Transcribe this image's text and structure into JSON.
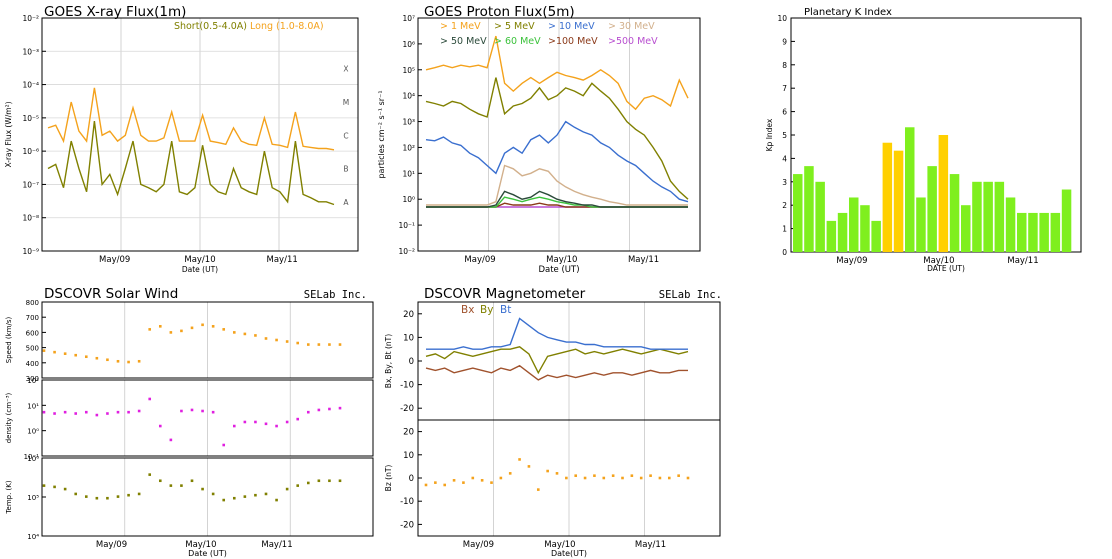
{
  "chart_data": [
    {
      "type": "line",
      "title": "GOES X-ray Flux(1m)",
      "xlabel": "Date (UT)",
      "ylabel": "X-ray Flux (W/m²)",
      "y_scale": "log",
      "ylim": [
        1e-09,
        0.01
      ],
      "y_ticks": [
        "10⁻⁹",
        "10⁻⁸",
        "10⁻⁷",
        "10⁻⁶",
        "10⁻⁵",
        "10⁻⁴",
        "10⁻³",
        "10⁻²"
      ],
      "x_ticks": [
        "May/09",
        "May/10",
        "May/11"
      ],
      "flare_classes": [
        "A",
        "B",
        "C",
        "M",
        "X"
      ],
      "grid": true,
      "legend": "top-right",
      "series": [
        {
          "name": "Short(0.5-4.0A)",
          "color": "#808000",
          "values": [
            3e-07,
            4e-07,
            8e-08,
            2e-06,
            3e-07,
            6e-08,
            8e-06,
            1e-07,
            2e-07,
            5e-08,
            3e-07,
            2e-06,
            1e-07,
            8e-08,
            6e-08,
            1e-07,
            2e-06,
            6e-08,
            5e-08,
            8e-08,
            1.5e-06,
            1e-07,
            6e-08,
            5e-08,
            3e-07,
            8e-08,
            6e-08,
            5e-08,
            1e-06,
            8e-08,
            6e-08,
            3e-08,
            2e-06,
            5e-08,
            4e-08,
            3e-08,
            3e-08,
            2.5e-08
          ]
        },
        {
          "name": "Long (1.0-8.0A)",
          "color": "#f4a21c",
          "values": [
            5e-06,
            6e-06,
            2e-06,
            3e-05,
            4e-06,
            2e-06,
            8e-05,
            3e-06,
            4e-06,
            2e-06,
            3e-06,
            2e-05,
            3e-06,
            2e-06,
            2e-06,
            2.5e-06,
            1.5e-05,
            2e-06,
            2e-06,
            2e-06,
            1.2e-05,
            2e-06,
            1.8e-06,
            1.6e-06,
            5e-06,
            2e-06,
            1.6e-06,
            1.5e-06,
            1e-05,
            1.6e-06,
            1.5e-06,
            1.3e-06,
            1.5e-05,
            1.4e-06,
            1.3e-06,
            1.2e-06,
            1.2e-06,
            1.1e-06
          ]
        }
      ]
    },
    {
      "type": "line",
      "title": "GOES Proton Flux(5m)",
      "xlabel": "Date (UT)",
      "ylabel": "particles cm⁻² s⁻¹ sr⁻¹",
      "y_scale": "log",
      "ylim": [
        0.01,
        10000000.0
      ],
      "y_ticks": [
        "10⁻²",
        "10⁻¹",
        "10⁰",
        "10¹",
        "10²",
        "10³",
        "10⁴",
        "10⁵",
        "10⁶",
        "10⁷"
      ],
      "x_ticks": [
        "May/09",
        "May/10",
        "May/11"
      ],
      "grid": true,
      "legend": "top",
      "series": [
        {
          "name": "> 1 MeV",
          "color": "#f4a21c",
          "values": [
            100000.0,
            120000.0,
            150000.0,
            120000.0,
            150000.0,
            130000.0,
            150000.0,
            120000.0,
            2000000.0,
            30000.0,
            15000.0,
            30000.0,
            50000.0,
            30000.0,
            50000.0,
            80000.0,
            60000.0,
            50000.0,
            40000.0,
            60000.0,
            100000.0,
            60000.0,
            30000.0,
            6000.0,
            3000.0,
            8000.0,
            10000.0,
            7000.0,
            4000.0,
            40000.0,
            8000.0
          ]
        },
        {
          "name": "> 5 MeV",
          "color": "#808000",
          "values": [
            6000.0,
            5000.0,
            4000.0,
            6000.0,
            5000.0,
            3000.0,
            2000.0,
            1500.0,
            50000.0,
            2000.0,
            4000.0,
            5000.0,
            8000.0,
            20000.0,
            7000.0,
            10000.0,
            20000.0,
            15000.0,
            10000.0,
            30000.0,
            15000.0,
            8000.0,
            3000.0,
            1000.0,
            500,
            300,
            100,
            30,
            5,
            2,
            1
          ]
        },
        {
          "name": "> 10 MeV",
          "color": "#3a6fcf",
          "values": [
            200,
            180,
            250,
            150,
            120,
            60,
            40,
            20,
            10,
            60,
            100,
            60,
            200,
            300,
            150,
            300,
            1000,
            600,
            400,
            300,
            150,
            100,
            50,
            30,
            20,
            10,
            5,
            3,
            2,
            1,
            0.8
          ]
        },
        {
          "name": "> 30 MeV",
          "color": "#d2b08c",
          "values": [
            0.6,
            0.6,
            0.6,
            0.6,
            0.6,
            0.6,
            0.6,
            0.6,
            0.8,
            20,
            15,
            8,
            10,
            15,
            12,
            5,
            3,
            2,
            1.5,
            1.2,
            1,
            0.8,
            0.7,
            0.6,
            0.6,
            0.6,
            0.6,
            0.6,
            0.6,
            0.6,
            0.6
          ]
        },
        {
          "name": "> 50 MeV",
          "color": "#2b4a3a",
          "values": [
            0.5,
            0.5,
            0.5,
            0.5,
            0.5,
            0.5,
            0.5,
            0.5,
            0.6,
            2,
            1.5,
            1,
            1.2,
            2,
            1.5,
            1,
            0.8,
            0.7,
            0.6,
            0.6,
            0.5,
            0.5,
            0.5,
            0.5,
            0.5,
            0.5,
            0.5,
            0.5,
            0.5,
            0.5,
            0.5
          ]
        },
        {
          "name": "> 60 MeV",
          "color": "#3cc23c",
          "values": [
            0.5,
            0.5,
            0.5,
            0.5,
            0.5,
            0.5,
            0.5,
            0.5,
            0.5,
            1.2,
            1,
            0.8,
            1,
            1.2,
            1,
            0.8,
            0.7,
            0.6,
            0.6,
            0.5,
            0.5,
            0.5,
            0.5,
            0.5,
            0.5,
            0.5,
            0.5,
            0.5,
            0.5,
            0.5,
            0.5
          ]
        },
        {
          "name": ">100 MeV",
          "color": "#8b3a1a",
          "values": [
            0.5,
            0.5,
            0.5,
            0.5,
            0.5,
            0.5,
            0.5,
            0.5,
            0.5,
            0.7,
            0.6,
            0.6,
            0.6,
            0.7,
            0.6,
            0.6,
            0.5,
            0.5,
            0.5,
            0.5,
            0.5,
            0.5,
            0.5,
            0.5,
            0.5,
            0.5,
            0.5,
            0.5,
            0.5,
            0.5,
            0.5
          ]
        },
        {
          "name": ">500 MeV",
          "color": "#b84fd0",
          "values": [
            0.5,
            0.5,
            0.5,
            0.5,
            0.5,
            0.5,
            0.5,
            0.5,
            0.5,
            0.5,
            0.5,
            0.5,
            0.5,
            0.5,
            0.5,
            0.5,
            0.5,
            0.5,
            0.5,
            0.5,
            0.5,
            0.5,
            0.5,
            0.5,
            0.5,
            0.5,
            0.5,
            0.5,
            0.5,
            0.5,
            0.5
          ]
        }
      ]
    },
    {
      "type": "bar",
      "title": "Planetary K Index",
      "xlabel": "DATE (UT)",
      "ylabel": "Kp Index",
      "ylim": [
        0,
        10
      ],
      "y_ticks": [
        "0",
        "1",
        "2",
        "3",
        "4",
        "5",
        "6",
        "7",
        "8",
        "9",
        "10"
      ],
      "x_ticks": [
        "May/09",
        "May/10",
        "May/11"
      ],
      "values": [
        3.33,
        3.67,
        3.0,
        1.33,
        1.67,
        2.33,
        2.0,
        1.33,
        4.67,
        4.33,
        5.33,
        2.33,
        3.67,
        5.0,
        3.33,
        2.0,
        3.0,
        3.0,
        3.0,
        2.33,
        1.67,
        1.67,
        1.67,
        1.67,
        2.67
      ],
      "colors": [
        "#7fef1e",
        "#7fef1e",
        "#7fef1e",
        "#7fef1e",
        "#7fef1e",
        "#7fef1e",
        "#7fef1e",
        "#7fef1e",
        "#ffd000",
        "#ffd000",
        "#7fef1e",
        "#7fef1e",
        "#7fef1e",
        "#ffd000",
        "#7fef1e",
        "#7fef1e",
        "#7fef1e",
        "#7fef1e",
        "#7fef1e",
        "#7fef1e",
        "#7fef1e",
        "#7fef1e",
        "#7fef1e",
        "#7fef1e",
        "#7fef1e"
      ]
    },
    {
      "type": "scatter",
      "title": "DSCOVR Solar Wind",
      "credit": "SELab Inc.",
      "xlabel": "Date (UT)",
      "x_ticks": [
        "May/09",
        "May/10",
        "May/11"
      ],
      "grid": true,
      "panels": [
        {
          "ylabel": "Speed (km/s)",
          "ylim": [
            300,
            800
          ],
          "y_ticks": [
            "300",
            "400",
            "500",
            "600",
            "700",
            "800"
          ],
          "color": "#f4a21c",
          "values": [
            480,
            470,
            460,
            450,
            440,
            430,
            420,
            410,
            405,
            410,
            620,
            640,
            600,
            610,
            630,
            650,
            640,
            620,
            600,
            590,
            580,
            560,
            550,
            540,
            530,
            520,
            520,
            520,
            520
          ]
        },
        {
          "ylabel": "density (cm⁻³)",
          "y_scale": "log",
          "ylim": [
            0.1,
            200
          ],
          "y_ticks": [
            "10⁻¹",
            "10⁰",
            "10¹",
            "10²"
          ],
          "color": "#e020e0",
          "values": [
            8,
            7,
            8,
            7,
            8,
            6,
            7,
            8,
            8,
            9,
            30,
            2,
            0.5,
            9,
            10,
            9,
            8,
            0.3,
            2,
            3,
            3,
            2.5,
            2,
            3,
            4,
            8,
            10,
            11,
            12
          ]
        },
        {
          "ylabel": "Temp. (K)",
          "y_scale": "log",
          "ylim": [
            3000,
            2000000
          ],
          "y_ticks": [
            "10⁴",
            "10⁵",
            "10⁶"
          ],
          "color": "#808000",
          "values": [
            200000,
            180000,
            150000,
            100000,
            80000,
            70000,
            70000,
            80000,
            90000,
            100000,
            500000,
            300000,
            200000,
            200000,
            300000,
            150000,
            100000,
            60000,
            70000,
            80000,
            90000,
            100000,
            60000,
            150000,
            200000,
            250000,
            300000,
            300000,
            300000
          ]
        }
      ]
    },
    {
      "type": "line",
      "title": "DSCOVR Magnetometer",
      "credit": "SELab Inc.",
      "xlabel": "Date(UT)",
      "x_ticks": [
        "May/09",
        "May/10",
        "May/11"
      ],
      "grid": true,
      "panels": [
        {
          "ylabel": "Bx, By, Bt (nT)",
          "ylim": [
            -25,
            25
          ],
          "y_ticks": [
            "-20",
            "-10",
            "0",
            "10",
            "20"
          ],
          "series": [
            {
              "name": "Bx",
              "color": "#a0522d",
              "values": [
                -3,
                -4,
                -3,
                -5,
                -4,
                -3,
                -4,
                -5,
                -3,
                -4,
                -2,
                -5,
                -8,
                -6,
                -7,
                -6,
                -7,
                -6,
                -5,
                -6,
                -5,
                -5,
                -6,
                -5,
                -4,
                -5,
                -5,
                -4,
                -4
              ]
            },
            {
              "name": "By",
              "color": "#808000",
              "values": [
                2,
                3,
                1,
                4,
                3,
                2,
                3,
                4,
                5,
                5,
                6,
                3,
                -5,
                2,
                3,
                4,
                5,
                3,
                4,
                3,
                4,
                5,
                4,
                3,
                4,
                5,
                4,
                3,
                4
              ]
            },
            {
              "name": "Bt",
              "color": "#3a6fcf",
              "values": [
                5,
                5,
                5,
                5,
                6,
                5,
                5,
                6,
                6,
                7,
                18,
                15,
                12,
                10,
                9,
                8,
                8,
                7,
                7,
                6,
                6,
                6,
                6,
                6,
                5,
                5,
                5,
                5,
                5
              ]
            }
          ]
        },
        {
          "ylabel": "Bz (nT)",
          "ylim": [
            -25,
            25
          ],
          "y_ticks": [
            "-20",
            "-10",
            "0",
            "10",
            "20"
          ],
          "series": [
            {
              "name": "Bz",
              "color": "#f4a21c",
              "values": [
                -3,
                -2,
                -3,
                -1,
                -2,
                0,
                -1,
                -2,
                0,
                2,
                8,
                5,
                -5,
                3,
                2,
                0,
                1,
                0,
                1,
                0,
                1,
                0,
                1,
                0,
                1,
                0,
                0,
                1,
                0
              ]
            }
          ]
        }
      ]
    }
  ]
}
